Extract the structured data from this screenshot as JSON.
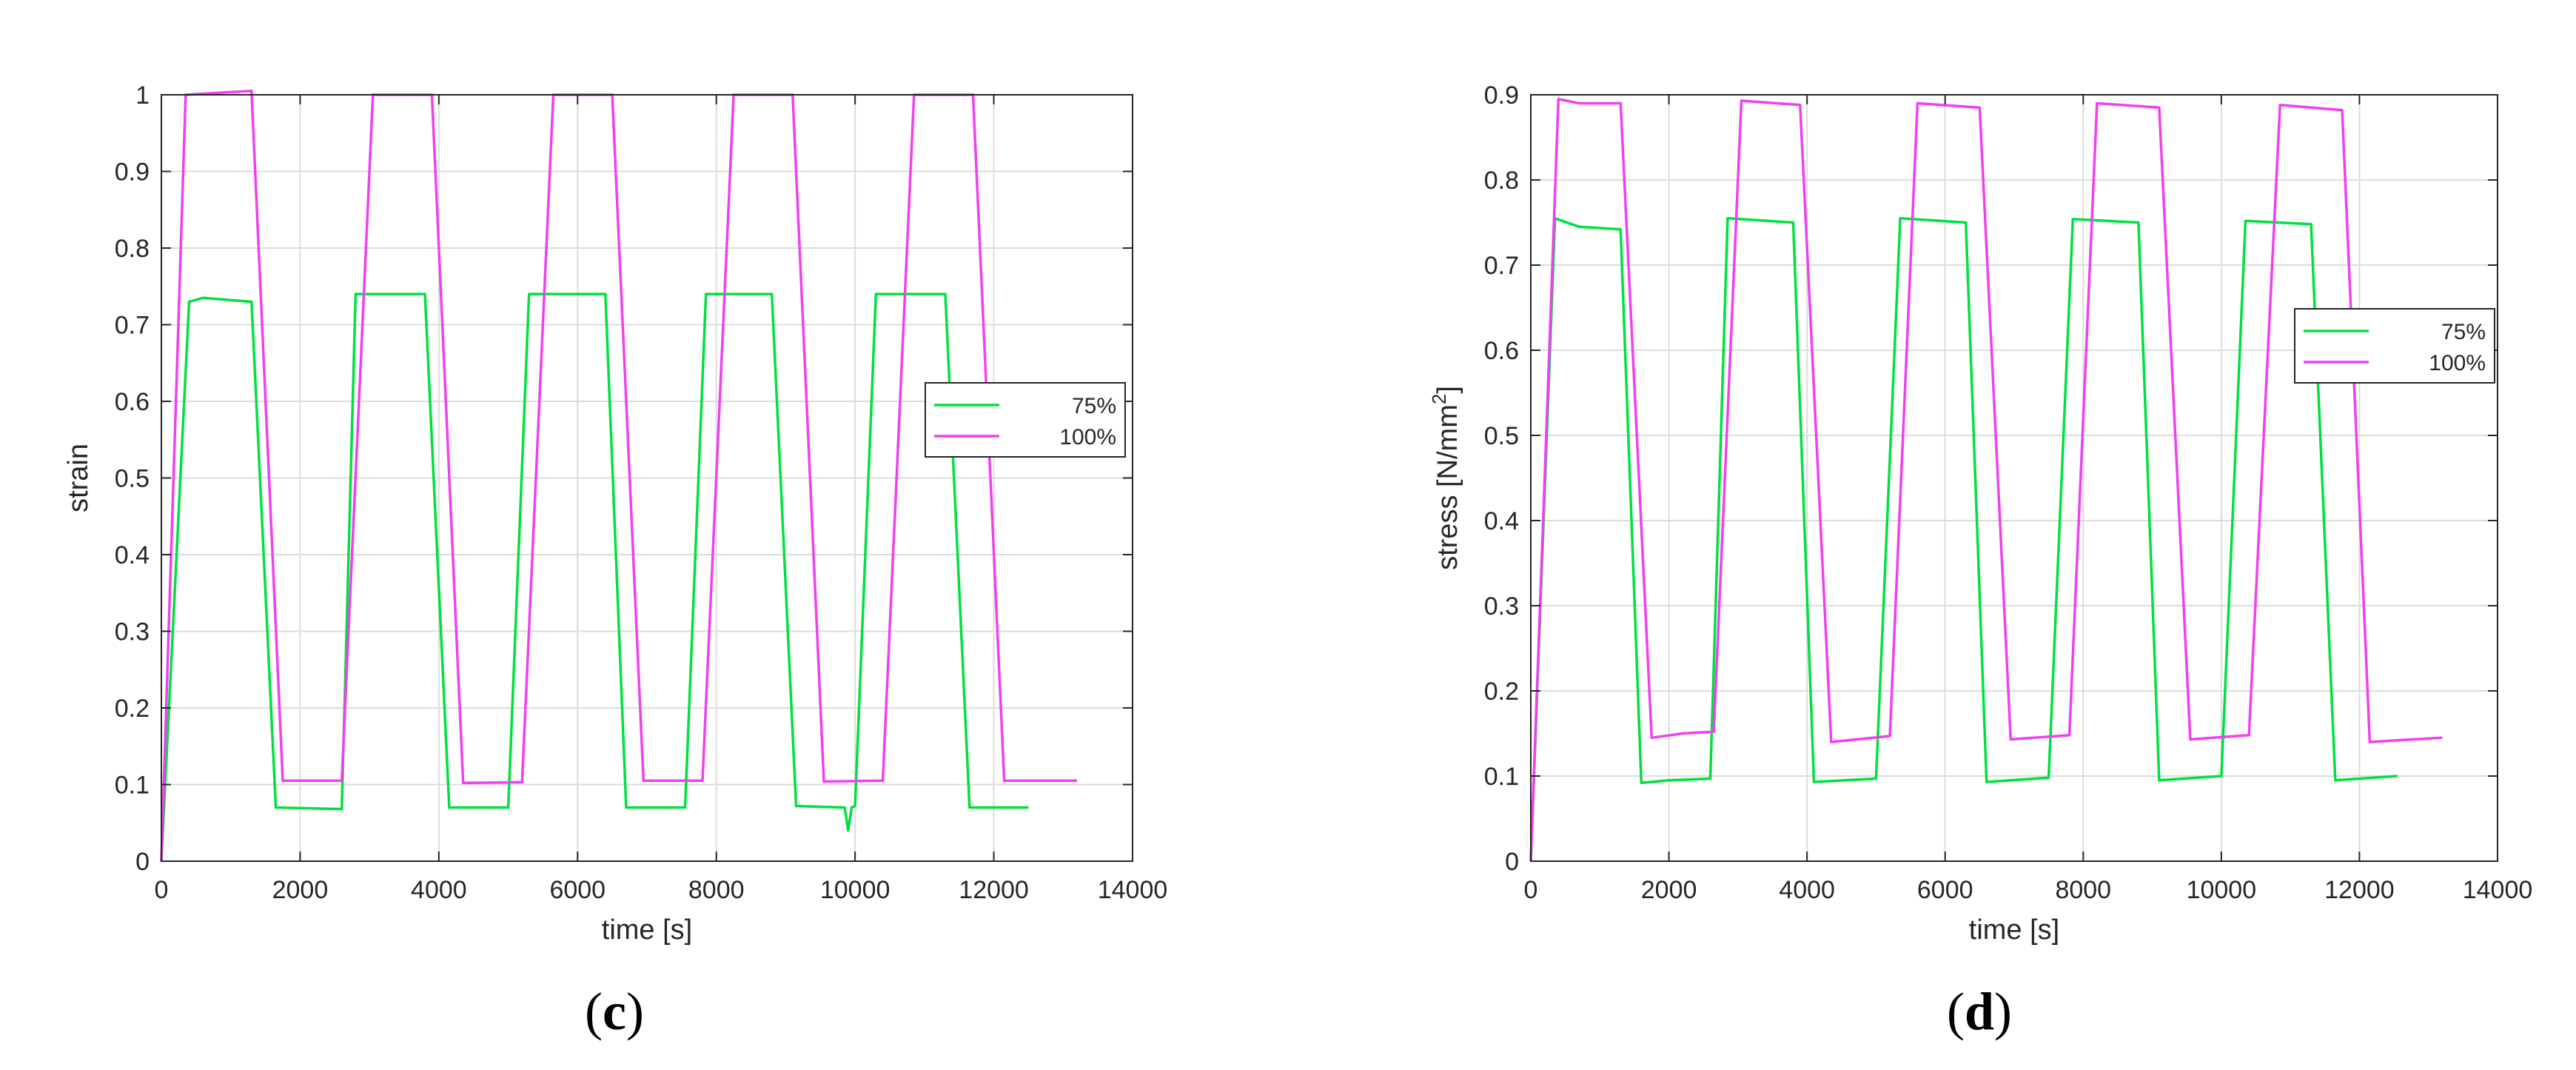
{
  "chart_data": [
    {
      "type": "line",
      "panel_label": "c",
      "xlabel": "time [s]",
      "ylabel": "strain",
      "xlim": [
        0,
        14000
      ],
      "ylim": [
        0,
        1
      ],
      "xticks": [
        0,
        2000,
        4000,
        6000,
        8000,
        10000,
        12000,
        14000
      ],
      "yticks": [
        0,
        0.1,
        0.2,
        0.3,
        0.4,
        0.5,
        0.6,
        0.7,
        0.8,
        0.9,
        1
      ],
      "grid": true,
      "legend": "right",
      "series": [
        {
          "name": "75%",
          "color": "#00e040",
          "points": [
            [
              0,
              0
            ],
            [
              400,
              0.73
            ],
            [
              600,
              0.735
            ],
            [
              1300,
              0.73
            ],
            [
              1650,
              0.07
            ],
            [
              2600,
              0.068
            ],
            [
              2800,
              0.74
            ],
            [
              3800,
              0.74
            ],
            [
              4150,
              0.07
            ],
            [
              5000,
              0.07
            ],
            [
              5300,
              0.74
            ],
            [
              6400,
              0.74
            ],
            [
              6700,
              0.07
            ],
            [
              7550,
              0.07
            ],
            [
              7850,
              0.74
            ],
            [
              8800,
              0.74
            ],
            [
              9150,
              0.072
            ],
            [
              9850,
              0.07
            ],
            [
              9900,
              0.04
            ],
            [
              9950,
              0.07
            ],
            [
              10000,
              0.072
            ],
            [
              10300,
              0.74
            ],
            [
              11300,
              0.74
            ],
            [
              11650,
              0.07
            ],
            [
              12500,
              0.07
            ]
          ]
        },
        {
          "name": "100%",
          "color": "#f040f0",
          "points": [
            [
              0,
              0
            ],
            [
              350,
              1.0
            ],
            [
              1300,
              1.005
            ],
            [
              1750,
              0.105
            ],
            [
              2600,
              0.105
            ],
            [
              3050,
              1.0
            ],
            [
              3900,
              1.0
            ],
            [
              4350,
              0.102
            ],
            [
              5200,
              0.103
            ],
            [
              5650,
              1.0
            ],
            [
              6500,
              1.0
            ],
            [
              6950,
              0.105
            ],
            [
              7800,
              0.105
            ],
            [
              8250,
              1.0
            ],
            [
              9100,
              1.0
            ],
            [
              9550,
              0.104
            ],
            [
              10400,
              0.105
            ],
            [
              10850,
              1.0
            ],
            [
              11700,
              1.0
            ],
            [
              12150,
              0.105
            ],
            [
              13200,
              0.105
            ]
          ]
        }
      ]
    },
    {
      "type": "line",
      "panel_label": "d",
      "xlabel": "time [s]",
      "ylabel": "stress [N/mm",
      "ylabel_sup": "2",
      "ylabel_end": "]",
      "xlim": [
        0,
        14000
      ],
      "ylim": [
        0,
        0.9
      ],
      "xticks": [
        0,
        2000,
        4000,
        6000,
        8000,
        10000,
        12000,
        14000
      ],
      "yticks": [
        0,
        0.1,
        0.2,
        0.3,
        0.4,
        0.5,
        0.6,
        0.7,
        0.8,
        0.9
      ],
      "grid": true,
      "legend": "right",
      "series": [
        {
          "name": "75%",
          "color": "#00e040",
          "points": [
            [
              0,
              0
            ],
            [
              350,
              0.755
            ],
            [
              700,
              0.745
            ],
            [
              1300,
              0.742
            ],
            [
              1600,
              0.092
            ],
            [
              2000,
              0.095
            ],
            [
              2600,
              0.097
            ],
            [
              2850,
              0.755
            ],
            [
              3800,
              0.75
            ],
            [
              4100,
              0.093
            ],
            [
              5000,
              0.097
            ],
            [
              5350,
              0.755
            ],
            [
              6300,
              0.75
            ],
            [
              6600,
              0.093
            ],
            [
              7500,
              0.098
            ],
            [
              7850,
              0.754
            ],
            [
              8800,
              0.75
            ],
            [
              9100,
              0.095
            ],
            [
              10000,
              0.1
            ],
            [
              10350,
              0.752
            ],
            [
              11300,
              0.748
            ],
            [
              11650,
              0.095
            ],
            [
              12550,
              0.1
            ]
          ]
        },
        {
          "name": "100%",
          "color": "#f040f0",
          "points": [
            [
              0,
              0
            ],
            [
              400,
              0.895
            ],
            [
              700,
              0.89
            ],
            [
              1300,
              0.89
            ],
            [
              1750,
              0.145
            ],
            [
              2200,
              0.15
            ],
            [
              2650,
              0.152
            ],
            [
              3050,
              0.893
            ],
            [
              3900,
              0.888
            ],
            [
              4350,
              0.14
            ],
            [
              5200,
              0.147
            ],
            [
              5600,
              0.89
            ],
            [
              6500,
              0.885
            ],
            [
              6950,
              0.143
            ],
            [
              7800,
              0.148
            ],
            [
              8200,
              0.89
            ],
            [
              9100,
              0.885
            ],
            [
              9550,
              0.143
            ],
            [
              10400,
              0.148
            ],
            [
              10850,
              0.888
            ],
            [
              11750,
              0.882
            ],
            [
              12150,
              0.14
            ],
            [
              13200,
              0.145
            ]
          ]
        }
      ]
    }
  ]
}
